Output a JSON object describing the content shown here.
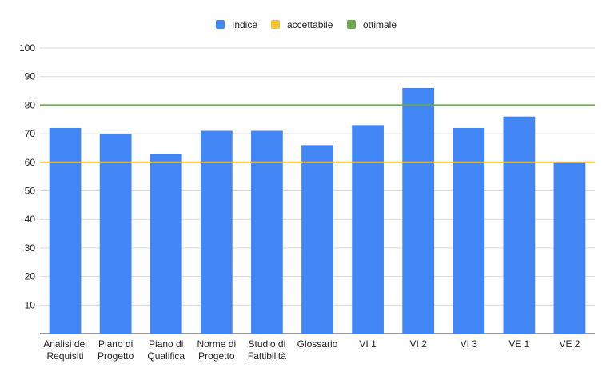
{
  "chart_data": {
    "type": "bar",
    "title": "",
    "xlabel": "",
    "ylabel": "",
    "categories": [
      [
        "Analisi dei",
        "Requisiti"
      ],
      [
        "Piano di",
        "Progetto"
      ],
      [
        "Piano di",
        "Qualifica"
      ],
      [
        "Norme di",
        "Progetto"
      ],
      [
        "Studio di",
        "Fattibilità"
      ],
      [
        "Glossario"
      ],
      [
        "VI 1"
      ],
      [
        "VI 2"
      ],
      [
        "VI 3"
      ],
      [
        "VE 1"
      ],
      [
        "VE 2"
      ]
    ],
    "series": [
      {
        "name": "Indice",
        "color": "#4285f4",
        "values": [
          72,
          70,
          63,
          71,
          71,
          66,
          73,
          86,
          72,
          76,
          60
        ]
      }
    ],
    "thresholds": [
      {
        "name": "accettabile",
        "value": 60,
        "color": "#f4c430"
      },
      {
        "name": "ottimale",
        "value": 80,
        "color": "#6aa84f"
      }
    ],
    "ylim": [
      0,
      100
    ],
    "yticks": [
      10,
      20,
      30,
      40,
      50,
      60,
      70,
      80,
      90,
      100
    ],
    "grid": true,
    "legend_position": "top-center"
  }
}
